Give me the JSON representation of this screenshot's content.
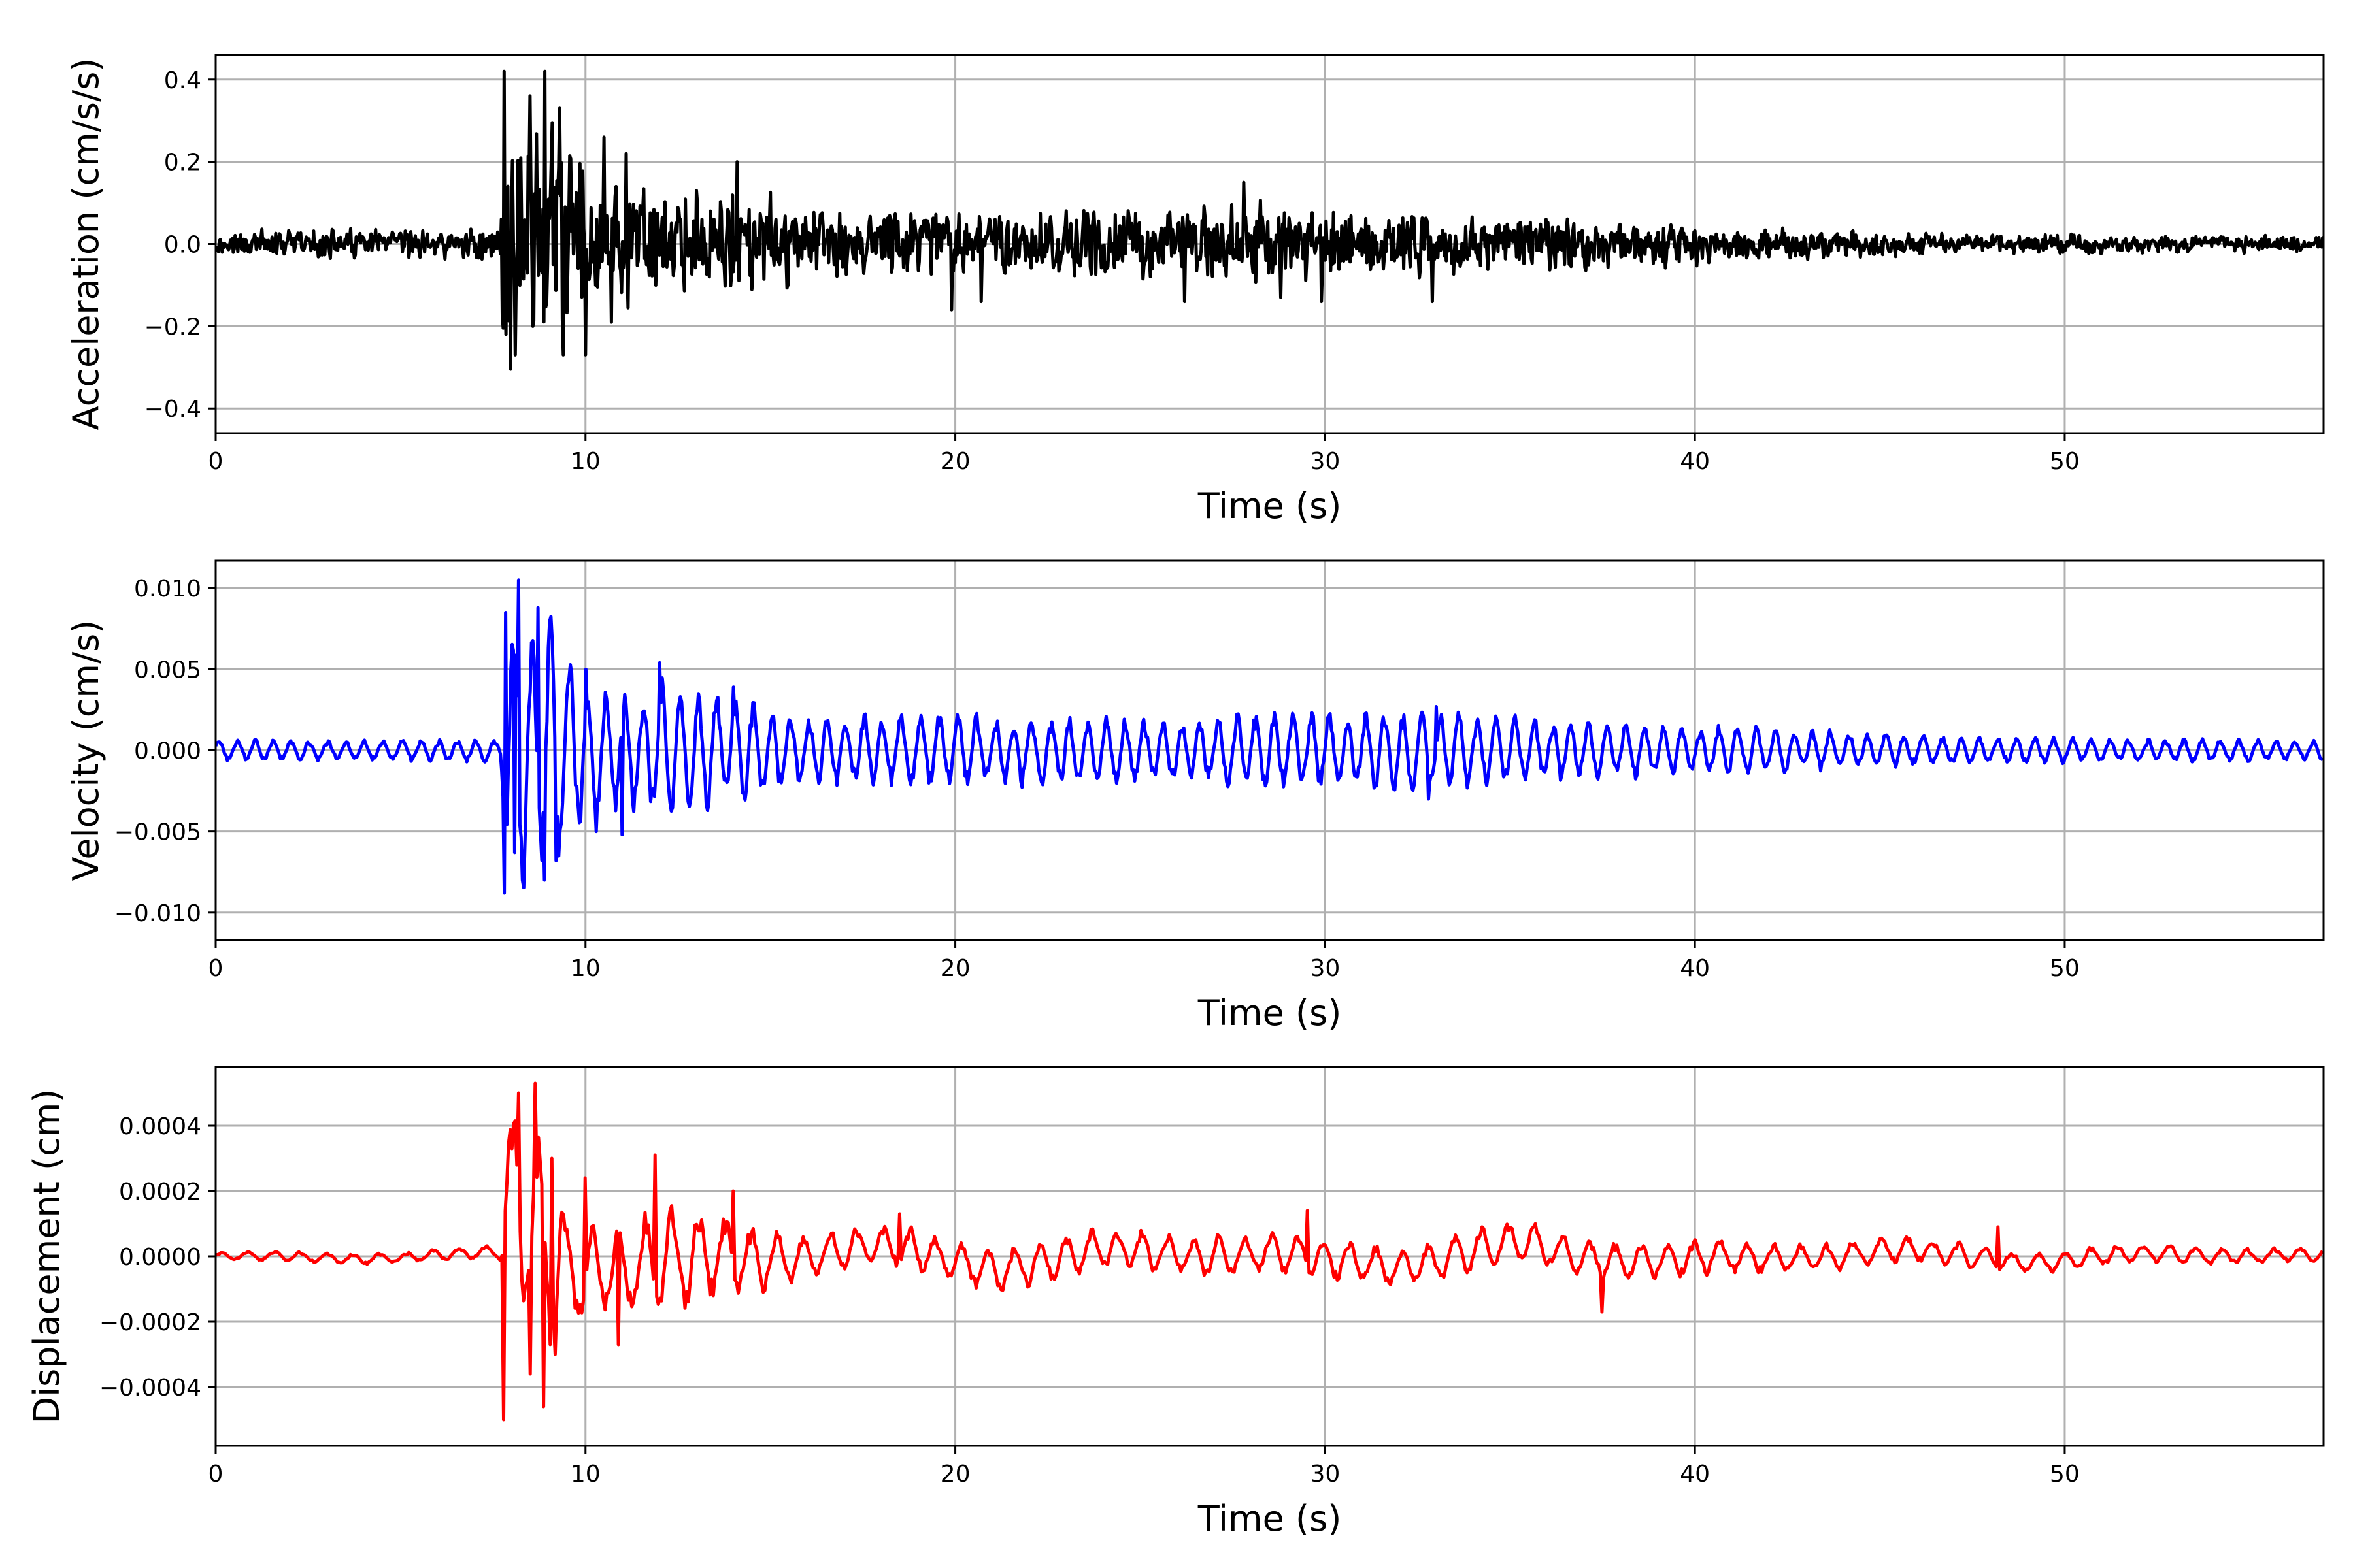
{
  "chart_data": [
    {
      "type": "line",
      "xlabel": "Time (s)",
      "ylabel": "Acceleration (cm/s/s)",
      "xlim": [
        0,
        57
      ],
      "ylim": [
        -0.46,
        0.46
      ],
      "xticks": [
        0,
        10,
        20,
        30,
        40,
        50
      ],
      "yticks": [
        -0.4,
        -0.2,
        0.0,
        0.2,
        0.4
      ],
      "xtick_labels": [
        "0",
        "10",
        "20",
        "30",
        "40",
        "50"
      ],
      "ytick_labels": [
        "−0.4",
        "−0.2",
        "0.0",
        "0.2",
        "0.4"
      ],
      "grid": true,
      "color": "#000000",
      "series": [
        {
          "envelope": [
            [
              0,
              0.04
            ],
            [
              7.7,
              0.05
            ],
            [
              7.8,
              0.42
            ],
            [
              8.9,
              0.42
            ],
            [
              10,
              0.26
            ],
            [
              11,
              0.22
            ],
            [
              12,
              0.15
            ],
            [
              14,
              0.16
            ],
            [
              16,
              0.12
            ],
            [
              20,
              0.12
            ],
            [
              24,
              0.11
            ],
            [
              28,
              0.13
            ],
            [
              30,
              0.11
            ],
            [
              34,
              0.09
            ],
            [
              38,
              0.08
            ],
            [
              42,
              0.05
            ],
            [
              46,
              0.035
            ],
            [
              50,
              0.03
            ],
            [
              57,
              0.025
            ]
          ],
          "peaks": [
            [
              7.8,
              0.42
            ],
            [
              7.85,
              -0.22
            ],
            [
              8.1,
              -0.27
            ],
            [
              8.5,
              0.36
            ],
            [
              8.9,
              0.42
            ],
            [
              9.4,
              -0.27
            ],
            [
              9.3,
              0.33
            ],
            [
              10.0,
              -0.27
            ],
            [
              10.5,
              0.26
            ],
            [
              10.7,
              -0.19
            ],
            [
              11.1,
              0.22
            ],
            [
              13.0,
              0.13
            ],
            [
              14.1,
              0.2
            ],
            [
              19.9,
              -0.16
            ],
            [
              20.7,
              -0.14
            ],
            [
              26.2,
              -0.14
            ],
            [
              27.8,
              0.15
            ],
            [
              28.8,
              -0.13
            ],
            [
              29.9,
              -0.14
            ],
            [
              32.9,
              -0.14
            ]
          ]
        }
      ]
    },
    {
      "type": "line",
      "xlabel": "Time (s)",
      "ylabel": "Velocity (cm/s)",
      "xlim": [
        0,
        57
      ],
      "ylim": [
        -0.0117,
        0.0117
      ],
      "xticks": [
        0,
        10,
        20,
        30,
        40,
        50
      ],
      "yticks": [
        -0.01,
        -0.005,
        0.0,
        0.005,
        0.01
      ],
      "xtick_labels": [
        "0",
        "10",
        "20",
        "30",
        "40",
        "50"
      ],
      "ytick_labels": [
        "−0.010",
        "−0.005",
        "0.000",
        "0.005",
        "0.010"
      ],
      "grid": true,
      "color": "#0000ff",
      "series": [
        {
          "envelope": [
            [
              0,
              0.0007
            ],
            [
              7.7,
              0.0008
            ],
            [
              7.8,
              0.0088
            ],
            [
              8.3,
              0.0105
            ],
            [
              9.2,
              0.0088
            ],
            [
              10,
              0.005
            ],
            [
              11,
              0.004
            ],
            [
              12,
              0.005
            ],
            [
              14,
              0.0035
            ],
            [
              16,
              0.0025
            ],
            [
              20,
              0.0025
            ],
            [
              25,
              0.0022
            ],
            [
              29,
              0.0026
            ],
            [
              33,
              0.0026
            ],
            [
              36,
              0.0022
            ],
            [
              40,
              0.0018
            ],
            [
              44,
              0.0013
            ],
            [
              48,
              0.0009
            ],
            [
              57,
              0.0007
            ]
          ],
          "peaks": [
            [
              7.8,
              -0.0088
            ],
            [
              7.85,
              0.0085
            ],
            [
              8.2,
              0.0105
            ],
            [
              8.7,
              0.0088
            ],
            [
              8.9,
              0.0088
            ],
            [
              8.1,
              -0.0063
            ],
            [
              8.3,
              -0.008
            ],
            [
              8.9,
              -0.008
            ],
            [
              9.2,
              -0.0068
            ],
            [
              10.0,
              0.005
            ],
            [
              10.3,
              -0.005
            ],
            [
              11.0,
              -0.0052
            ],
            [
              12.0,
              0.0054
            ],
            [
              14.0,
              0.0039
            ],
            [
              32.8,
              -0.003
            ],
            [
              33.0,
              0.0027
            ]
          ]
        }
      ]
    },
    {
      "type": "line",
      "xlabel": "Time (s)",
      "ylabel": "Displacement (cm)",
      "xlim": [
        0,
        57
      ],
      "ylim": [
        -0.00058,
        0.00058
      ],
      "xticks": [
        0,
        10,
        20,
        30,
        40,
        50
      ],
      "yticks": [
        -0.0004,
        -0.0002,
        0.0,
        0.0002,
        0.0004
      ],
      "xtick_labels": [
        "0",
        "10",
        "20",
        "30",
        "40",
        "50"
      ],
      "ytick_labels": [
        "−0.0004",
        "−0.0002",
        "0.0000",
        "0.0002",
        "0.0004"
      ],
      "grid": true,
      "color": "#ff0000",
      "series": [
        {
          "envelope": [
            [
              0,
              2e-05
            ],
            [
              7.6,
              3e-05
            ],
            [
              7.8,
              0.0005
            ],
            [
              8.7,
              0.00053
            ],
            [
              9.5,
              0.0003
            ],
            [
              10.5,
              0.00018
            ],
            [
              12,
              0.00028
            ],
            [
              14,
              0.00018
            ],
            [
              16,
              0.0001
            ],
            [
              20,
              0.0001
            ],
            [
              25,
              0.0001
            ],
            [
              30,
              0.0001
            ],
            [
              35,
              0.0001
            ],
            [
              40,
              8e-05
            ],
            [
              45,
              6e-05
            ],
            [
              50,
              5e-05
            ],
            [
              57,
              3e-05
            ]
          ],
          "peaks": [
            [
              7.8,
              -0.0005
            ],
            [
              8.0,
              0.00033
            ],
            [
              8.2,
              0.0005
            ],
            [
              8.5,
              -0.00036
            ],
            [
              8.65,
              0.00053
            ],
            [
              8.85,
              -0.00046
            ],
            [
              9.1,
              0.0003
            ],
            [
              9.2,
              -0.0003
            ],
            [
              10.0,
              0.00024
            ],
            [
              10.9,
              -0.00027
            ],
            [
              11.9,
              0.00031
            ],
            [
              14.0,
              0.0002
            ],
            [
              18.5,
              0.00013
            ],
            [
              29.5,
              0.00014
            ],
            [
              37.5,
              -0.00017
            ],
            [
              48.2,
              9e-05
            ]
          ]
        }
      ]
    }
  ]
}
